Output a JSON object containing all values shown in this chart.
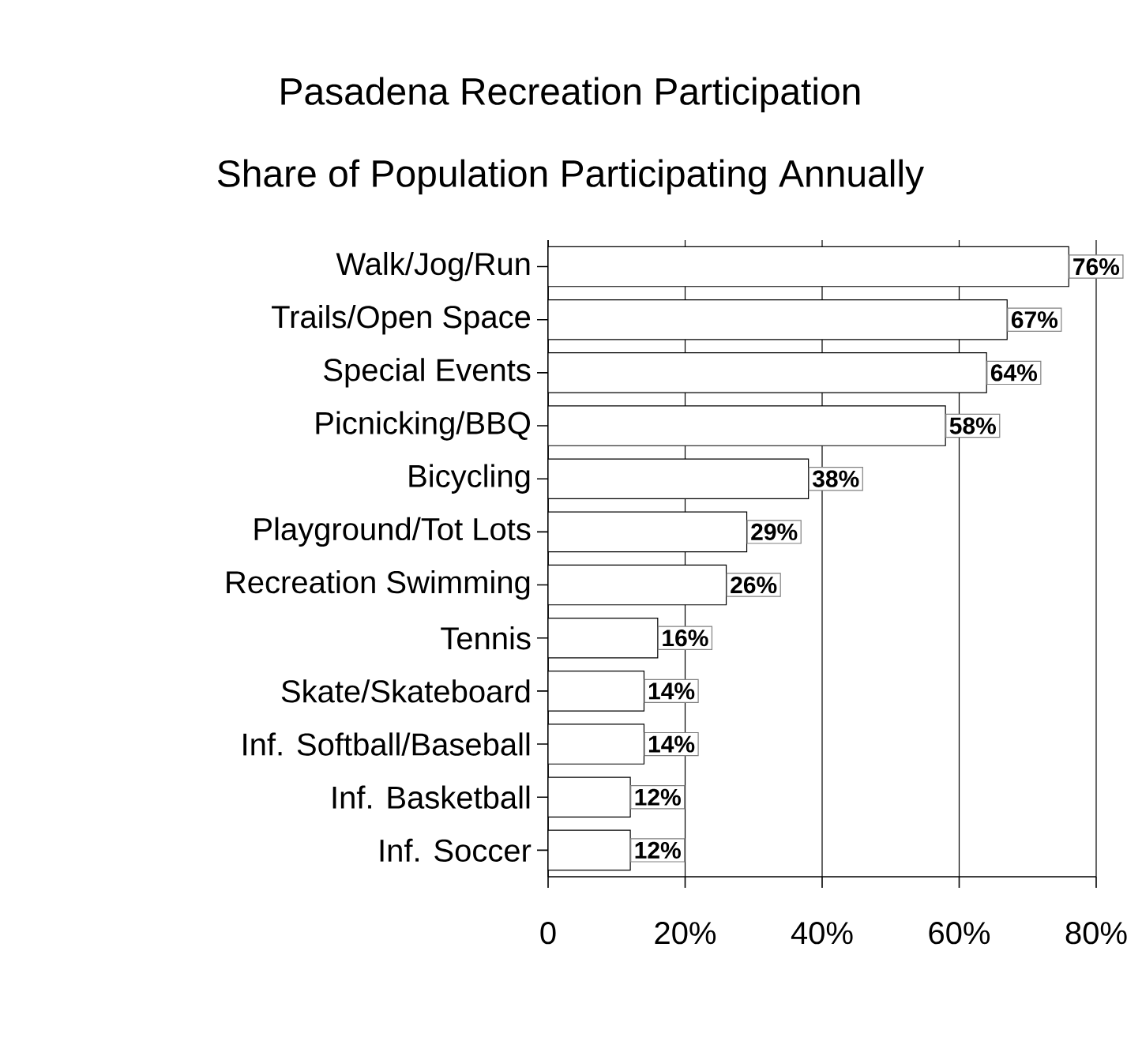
{
  "chart_data": {
    "type": "bar",
    "orientation": "horizontal",
    "title": "Pasadena Recreation Participation",
    "subtitle": "Share of Population Participating Annually",
    "categories": [
      "Walk/Jog/Run",
      "Trails/Open Space",
      "Special Events",
      "Picnicking/BBQ",
      "Bicycling",
      "Playground/Tot Lots",
      "Recreation Swimming",
      "Tennis",
      "Skate/Skateboard",
      "Inf. Softball/Baseball",
      "Inf. Basketball",
      "Inf. Soccer"
    ],
    "values": [
      76,
      67,
      64,
      58,
      38,
      29,
      26,
      16,
      14,
      14,
      12,
      12
    ],
    "value_labels": [
      "76%",
      "67%",
      "64%",
      "58%",
      "38%",
      "29%",
      "26%",
      "16%",
      "14%",
      "14%",
      "12%",
      "12%"
    ],
    "color": "#ffffff",
    "xlim": [
      0,
      80
    ],
    "xticks": [
      0,
      {
        "value": 20,
        "label": "20%"
      },
      {
        "value": 40,
        "label": "40%"
      },
      {
        "value": 60,
        "label": "60%"
      },
      {
        "value": 80,
        "label": "80%"
      }
    ],
    "grid": "x"
  }
}
